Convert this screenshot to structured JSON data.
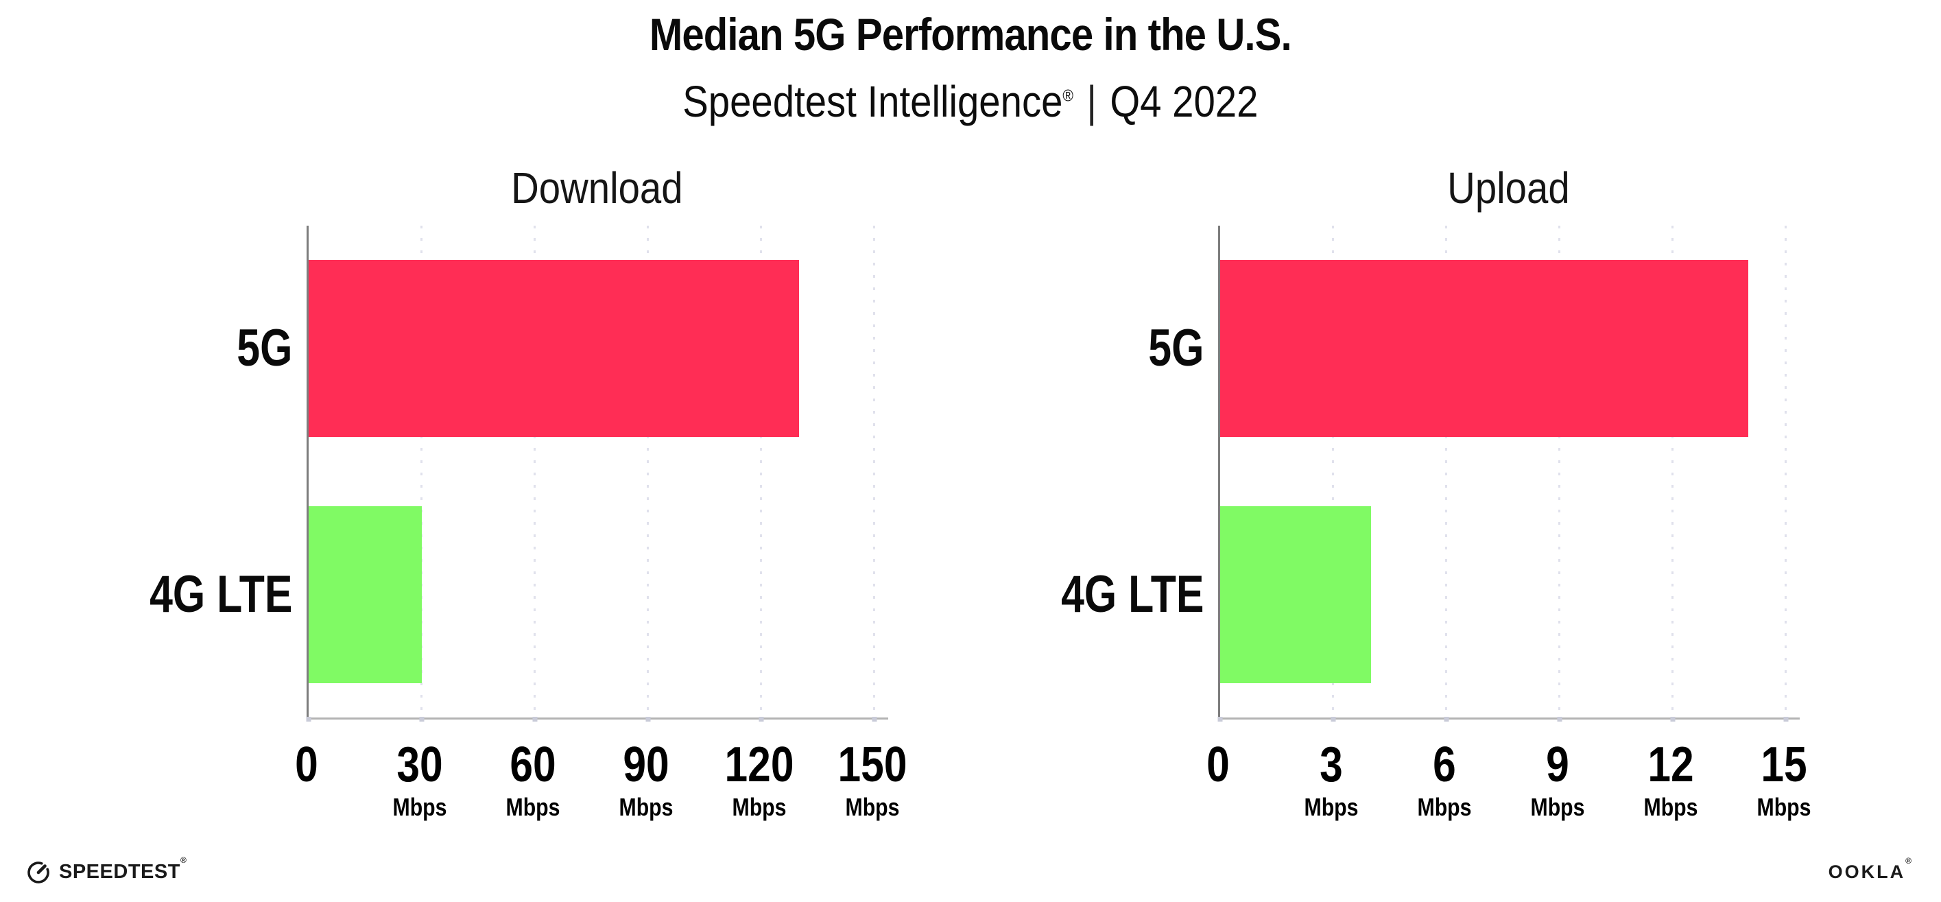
{
  "header": {
    "title": "Median 5G Performance in the U.S.",
    "subtitle_brand": "Speedtest Intelligence",
    "subtitle_reg": "®",
    "subtitle_divider": "|",
    "subtitle_period": "Q4 2022"
  },
  "chart_data": [
    {
      "type": "bar",
      "orientation": "horizontal",
      "title": "Download",
      "categories": [
        "5G",
        "4G LTE"
      ],
      "values": [
        130,
        30
      ],
      "unit": "Mbps",
      "xlim": [
        0,
        150
      ],
      "xticks": [
        0,
        30,
        60,
        90,
        120,
        150
      ],
      "tick_unit_label": "Mbps",
      "bar_colors": [
        "#ff2d55",
        "#80fa64"
      ],
      "grid": "dotted-vertical",
      "legend": "none"
    },
    {
      "type": "bar",
      "orientation": "horizontal",
      "title": "Upload",
      "categories": [
        "5G",
        "4G LTE"
      ],
      "values": [
        14,
        4
      ],
      "unit": "Mbps",
      "xlim": [
        0,
        15
      ],
      "xticks": [
        0,
        3,
        6,
        9,
        12,
        15
      ],
      "tick_unit_label": "Mbps",
      "bar_colors": [
        "#ff2d55",
        "#80fa64"
      ],
      "grid": "dotted-vertical",
      "legend": "none"
    }
  ],
  "footer": {
    "speedtest": "SPEEDTEST",
    "speedtest_reg": "®",
    "ookla": "OOKLA",
    "ookla_reg": "®"
  }
}
